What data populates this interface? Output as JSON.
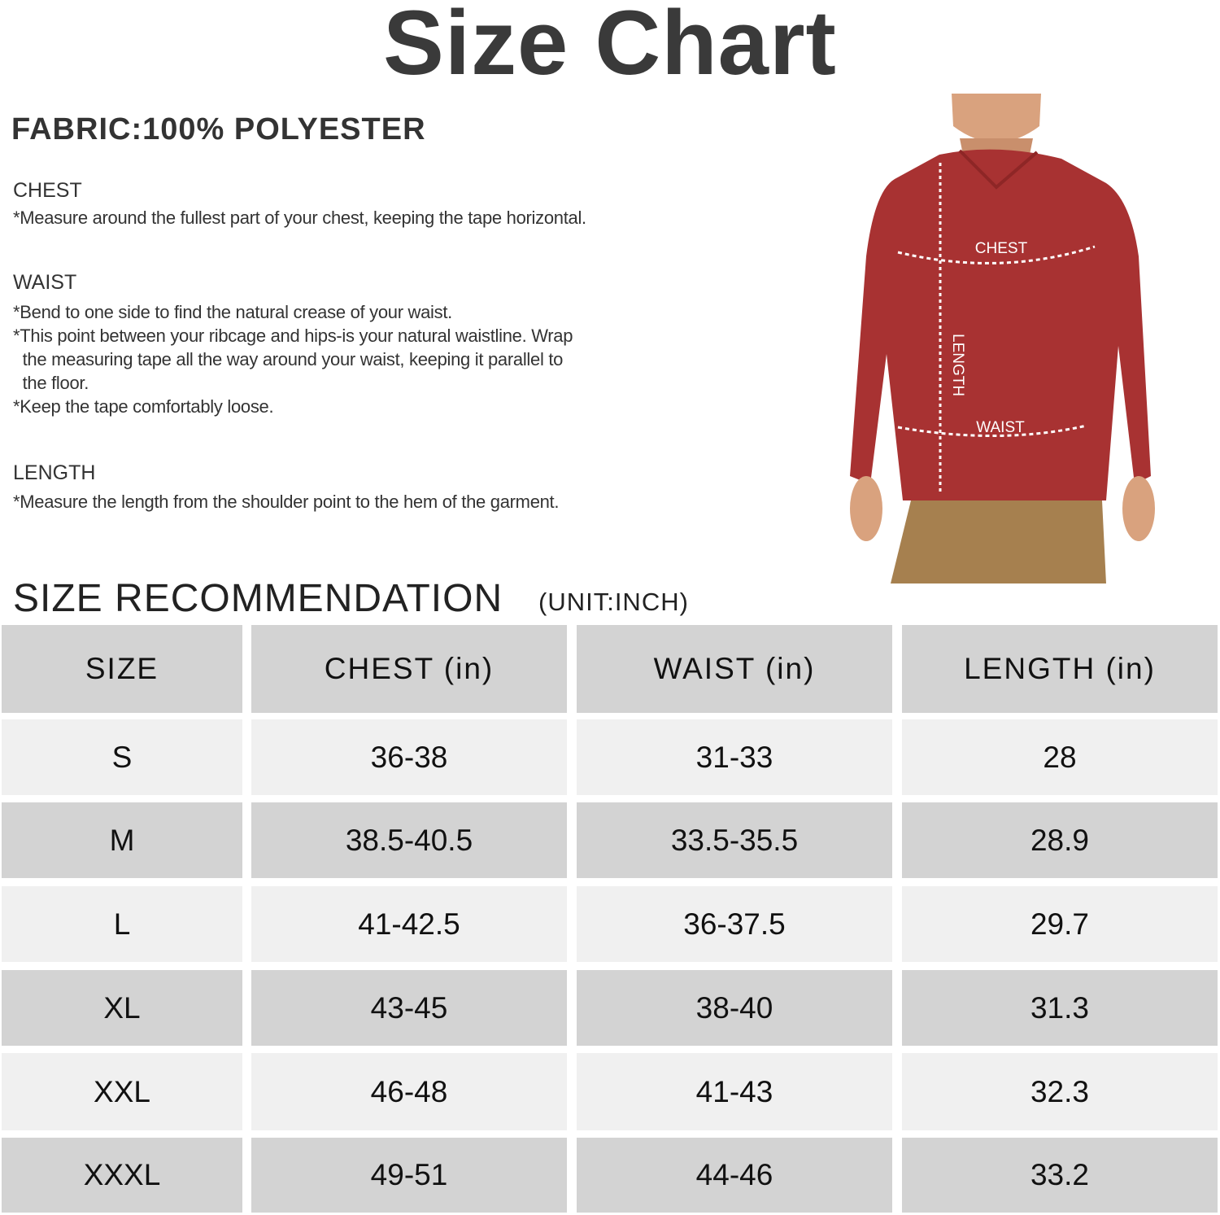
{
  "title": "Size Chart",
  "fabric": "FABRIC:100% POLYESTER",
  "sections": [
    {
      "heading": "CHEST",
      "text": "*Measure around the fullest part of your chest, keeping the tape horizontal."
    },
    {
      "heading": "WAIST",
      "text": "*Bend to one side to find the natural crease of your waist.\n*This point between your ribcage and hips-is your natural waistline. Wrap\n  the measuring tape all the way around your waist, keeping it parallel to\n  the floor.\n*Keep the tape comfortably loose."
    },
    {
      "heading": "LENGTH",
      "text": "*Measure the length from the shoulder point to the hem of the garment."
    }
  ],
  "photo_labels": {
    "chest": "CHEST",
    "waist": "WAIST",
    "length": "LENGTH"
  },
  "recommendation": {
    "title": "SIZE RECOMMENDATION",
    "unit": "(UNIT:INCH)"
  },
  "table": {
    "headers": [
      "SIZE",
      "CHEST (in)",
      "WAIST (in)",
      "LENGTH (in)"
    ],
    "rows": [
      [
        "S",
        "36-38",
        "31-33",
        "28"
      ],
      [
        "M",
        "38.5-40.5",
        "33.5-35.5",
        "28.9"
      ],
      [
        "L",
        "41-42.5",
        "36-37.5",
        "29.7"
      ],
      [
        "XL",
        "43-45",
        "38-40",
        "31.3"
      ],
      [
        "XXL",
        "46-48",
        "41-43",
        "32.3"
      ],
      [
        "XXXL",
        "49-51",
        "44-46",
        "33.2"
      ]
    ]
  },
  "colors": {
    "shirt": "#a83232",
    "header_bg": "#d3d3d3",
    "row_light": "#f0f0f0",
    "row_dark": "#d3d3d3"
  }
}
